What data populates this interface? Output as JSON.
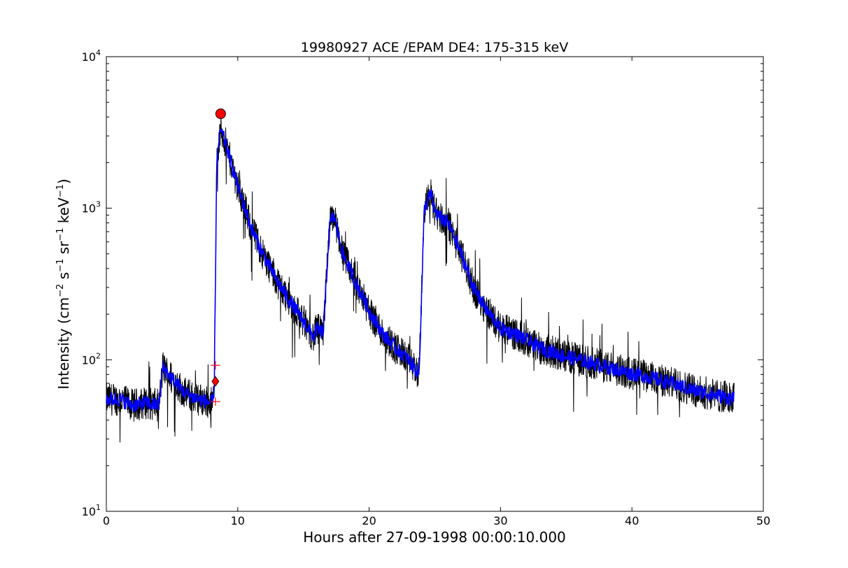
{
  "chart_data": {
    "type": "line",
    "title": "19980927 ACE /EPAM DE4: 175-315 keV",
    "xlabel": "Hours after 27-09-1998 00:00:10.000",
    "ylabel_main": "Intensity (cm",
    "ylabel_parts": [
      "−2",
      " s",
      "−1",
      " sr",
      "−1",
      " keV",
      "−1",
      ")"
    ],
    "xlim": [
      0,
      50
    ],
    "ylim": [
      10,
      10000
    ],
    "yscale": "log",
    "x_ticks": [
      "0",
      "10",
      "20",
      "30",
      "40",
      "50"
    ],
    "y_ticks": [
      {
        "value": 10,
        "base": "10",
        "exp": "1"
      },
      {
        "value": 100,
        "base": "10",
        "exp": "2"
      },
      {
        "value": 1000,
        "base": "10",
        "exp": "3"
      },
      {
        "value": 10000,
        "base": "10",
        "exp": "4"
      }
    ],
    "colors": {
      "raw": "#000000",
      "smoothed": "#0000ff",
      "marker": "#ff0000"
    },
    "series": [
      {
        "kind": "raw",
        "x": [
          0,
          1,
          2,
          3,
          4,
          4.3,
          5,
          6,
          7,
          8,
          8.2,
          8.4,
          8.7,
          9,
          10,
          11,
          12,
          13,
          14,
          15,
          15.8,
          16.0,
          16.5,
          17.0,
          17.3,
          18,
          19,
          20,
          21,
          22,
          23,
          23.8,
          24.2,
          24.7,
          25.0,
          25.5,
          26,
          27,
          28,
          29,
          30,
          31,
          33,
          35,
          37,
          39,
          41,
          43,
          45,
          47,
          47.8
        ],
        "y": [
          55,
          55,
          50,
          52,
          50,
          90,
          75,
          60,
          55,
          52,
          55,
          2000,
          3300,
          2800,
          1400,
          750,
          480,
          330,
          240,
          180,
          140,
          160,
          150,
          780,
          900,
          500,
          320,
          210,
          150,
          120,
          100,
          80,
          1000,
          1250,
          950,
          850,
          800,
          500,
          290,
          210,
          160,
          150,
          120,
          105,
          95,
          85,
          78,
          70,
          62,
          57,
          55
        ]
      },
      {
        "kind": "smoothed",
        "x": [
          0,
          1,
          2,
          3,
          4,
          4.3,
          5,
          6,
          7,
          8,
          8.2,
          8.4,
          8.7,
          9,
          10,
          11,
          12,
          13,
          14,
          15,
          15.8,
          16.0,
          16.5,
          17.0,
          17.3,
          18,
          19,
          20,
          21,
          22,
          23,
          23.8,
          24.2,
          24.7,
          25.0,
          25.5,
          26,
          27,
          28,
          29,
          30,
          31,
          33,
          35,
          37,
          39,
          41,
          43,
          45,
          47,
          47.8
        ],
        "y": [
          55,
          55,
          50,
          52,
          50,
          90,
          75,
          60,
          55,
          52,
          55,
          2000,
          3300,
          2800,
          1400,
          750,
          480,
          330,
          240,
          180,
          140,
          160,
          150,
          780,
          900,
          500,
          320,
          210,
          150,
          120,
          100,
          80,
          1000,
          1250,
          950,
          850,
          800,
          500,
          290,
          210,
          160,
          150,
          120,
          105,
          95,
          85,
          78,
          70,
          62,
          57,
          55
        ]
      }
    ],
    "markers": [
      {
        "kind": "peak-circle",
        "x": 8.7,
        "y": 4200
      },
      {
        "kind": "onset-diamond",
        "x": 8.3,
        "y": 72
      },
      {
        "kind": "plus",
        "x": 8.3,
        "y": 92
      },
      {
        "kind": "plus",
        "x": 8.3,
        "y": 53
      }
    ],
    "grid": false,
    "legend": "none"
  }
}
